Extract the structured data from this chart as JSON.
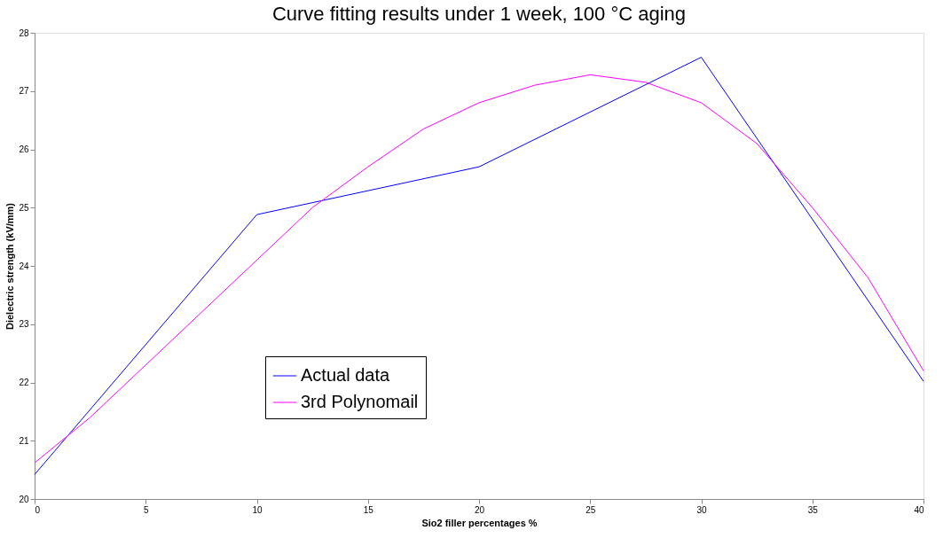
{
  "chart_data": {
    "type": "line",
    "title": "Curve fitting results  under 1 week, 100 °C aging",
    "xlabel": "Sio2 filler percentages %",
    "ylabel": "Dielectric strength (kV/mm)",
    "xlim": [
      0,
      40
    ],
    "xticks": [
      0,
      5,
      10,
      15,
      20,
      25,
      30,
      35,
      40
    ],
    "ylim": [
      20,
      28
    ],
    "yticks": [
      20,
      21,
      22,
      23,
      24,
      25,
      26,
      27,
      28
    ],
    "grid": false,
    "legend": "bottom",
    "line_style": "solid",
    "series": [
      {
        "name": "Actual data",
        "color": "#0000ff",
        "x": [
          0,
          10,
          20,
          30,
          40
        ],
        "values": [
          20.42,
          24.88,
          25.7,
          27.58,
          22.02
        ]
      },
      {
        "name": "3rd Polynomail",
        "color": "#ff00ff",
        "x": [
          0,
          2.5,
          5,
          7.5,
          10,
          12.5,
          15,
          17.5,
          20,
          22.5,
          25,
          27.5,
          30,
          32.5,
          35,
          37.5,
          40
        ],
        "values": [
          20.62,
          21.4,
          22.3,
          23.2,
          24.1,
          25.0,
          25.7,
          26.35,
          26.8,
          27.1,
          27.28,
          27.15,
          26.8,
          26.1,
          25.0,
          23.8,
          22.2
        ]
      }
    ]
  }
}
